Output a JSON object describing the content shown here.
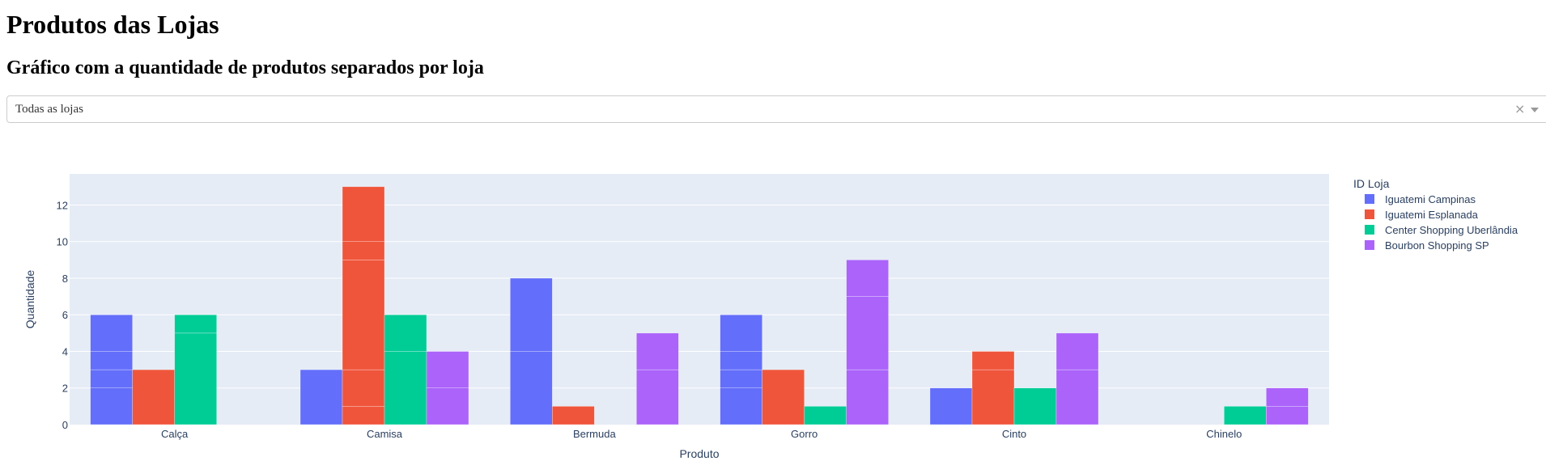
{
  "page": {
    "title": "Produtos das Lojas",
    "subtitle": "Gráfico com a quantidade de produtos separados por loja"
  },
  "dropdown": {
    "selected": "Todas as lojas",
    "clear_symbol": "×"
  },
  "chart_data": {
    "type": "bar",
    "barmode": "group",
    "xlabel": "Produto",
    "ylabel": "Quantidade",
    "ylim": [
      0,
      13.7
    ],
    "yticks": [
      0,
      2,
      4,
      6,
      8,
      10,
      12
    ],
    "grid": true,
    "legend_title": "ID Loja",
    "legend_position": "right",
    "categories": [
      "Calça",
      "Camisa",
      "Bermuda",
      "Gorro",
      "Cinto",
      "Chinelo"
    ],
    "series": [
      {
        "name": "Iguatemi Campinas",
        "color": "#636efa",
        "values": [
          6,
          3,
          8,
          6,
          2,
          0
        ],
        "segments": [
          [
            2,
            1,
            1,
            2
          ],
          [
            3
          ],
          [
            4,
            4
          ],
          [
            2,
            1,
            1,
            2
          ],
          [
            2
          ],
          []
        ]
      },
      {
        "name": "Iguatemi Esplanada",
        "color": "#ef553b",
        "values": [
          3,
          13,
          1,
          3,
          4,
          0
        ],
        "segments": [
          [
            3
          ],
          [
            1,
            2,
            6,
            1,
            3
          ],
          [
            1
          ],
          [
            3
          ],
          [
            3,
            1
          ],
          []
        ]
      },
      {
        "name": "Center Shopping Uberlândia",
        "color": "#00cc96",
        "values": [
          6,
          6,
          0,
          1,
          2,
          1
        ],
        "segments": [
          [
            5,
            1
          ],
          [
            4,
            2
          ],
          [],
          [
            1
          ],
          [
            2
          ],
          [
            1
          ]
        ]
      },
      {
        "name": "Bourbon Shopping SP",
        "color": "#ab63fa",
        "values": [
          0,
          4,
          5,
          9,
          5,
          2
        ],
        "segments": [
          [],
          [
            2,
            2
          ],
          [
            3,
            2
          ],
          [
            3,
            4,
            2
          ],
          [
            3,
            2
          ],
          [
            1,
            1
          ]
        ]
      }
    ]
  }
}
